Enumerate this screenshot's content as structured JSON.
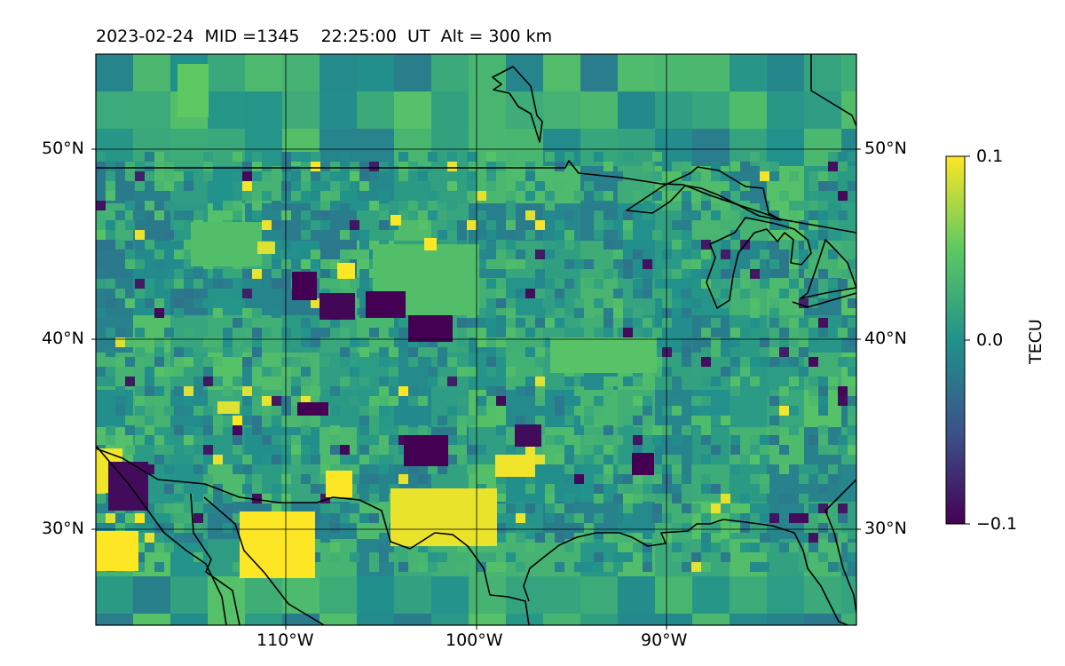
{
  "title": "2023-02-24  MID =1345    22:25:00  UT  Alt = 300 km",
  "map": {
    "lon_range": [
      -120,
      -80
    ],
    "lat_range": [
      25,
      55
    ],
    "lon_ticks": [
      {
        "value": -110,
        "label": "110°W"
      },
      {
        "value": -100,
        "label": "100°W"
      },
      {
        "value": -90,
        "label": "90°W"
      }
    ],
    "lat_ticks": [
      {
        "value": 50,
        "label": "50°N"
      },
      {
        "value": 40,
        "label": "40°N"
      },
      {
        "value": 30,
        "label": "30°N"
      }
    ],
    "grid": true,
    "colormap": "viridis"
  },
  "colorbar": {
    "title": "TECU",
    "range": [
      -0.1,
      0.1
    ],
    "ticks": [
      {
        "value": 0.1,
        "label": "0.1"
      },
      {
        "value": 0.0,
        "label": "0.0"
      },
      {
        "value": -0.1,
        "label": "−0.1"
      }
    ],
    "colors": [
      "#440154",
      "#3b528b",
      "#21918c",
      "#5ec962",
      "#fde725"
    ]
  }
}
